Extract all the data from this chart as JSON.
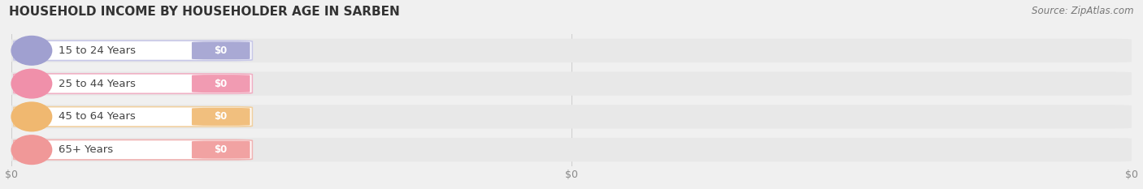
{
  "title": "HOUSEHOLD INCOME BY HOUSEHOLDER AGE IN SARBEN",
  "source": "Source: ZipAtlas.com",
  "categories": [
    "15 to 24 Years",
    "25 to 44 Years",
    "45 to 64 Years",
    "65+ Years"
  ],
  "values": [
    0,
    0,
    0,
    0
  ],
  "bar_colors": [
    "#a0a0d0",
    "#f090aa",
    "#f0b870",
    "#f09898"
  ],
  "label_bg_color": "#ffffff",
  "label_border_colors": [
    "#c8c8e8",
    "#f0b0c4",
    "#f0d0a0",
    "#f0b4b4"
  ],
  "background_color": "#f0f0f0",
  "bar_bg_color": "#e8e8e8",
  "title_fontsize": 11,
  "source_fontsize": 8.5,
  "label_fontsize": 9.5,
  "value_fontsize": 8.5,
  "fig_width": 14.06,
  "fig_height": 2.33,
  "tick_color": "#888888",
  "grid_color": "#cccccc",
  "title_color": "#333333",
  "source_color": "#777777",
  "label_text_color": "#444444"
}
